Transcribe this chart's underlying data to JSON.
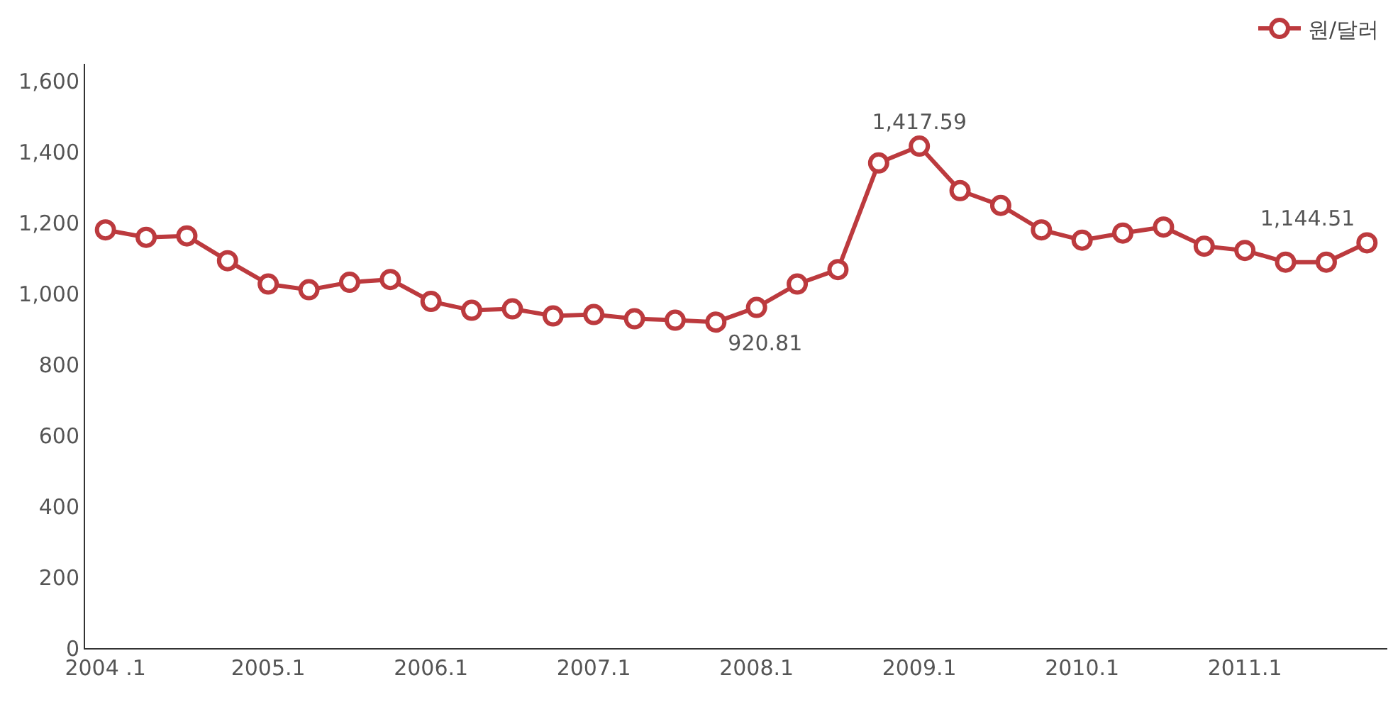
{
  "chart_data": {
    "type": "line",
    "categories": [
      "2004 .1",
      null,
      null,
      null,
      "2005.1",
      null,
      null,
      null,
      "2006.1",
      null,
      null,
      null,
      "2007.1",
      null,
      null,
      null,
      "2008.1",
      null,
      null,
      null,
      "2009.1",
      null,
      null,
      null,
      "2010.1",
      null,
      null,
      null,
      "2011.1",
      null,
      null,
      null
    ],
    "series": [
      {
        "name": "원/달러",
        "color": "#bc3a3e",
        "values": [
          1181,
          1160,
          1164,
          1094,
          1028,
          1012,
          1033,
          1041,
          979,
          954,
          958,
          938,
          942,
          930,
          926,
          920.81,
          962,
          1028,
          1069,
          1370,
          1417.59,
          1292,
          1250,
          1181,
          1152,
          1172,
          1189,
          1135,
          1123,
          1090,
          1090,
          1144.51
        ],
        "value_labels": [
          null,
          null,
          null,
          null,
          null,
          null,
          null,
          null,
          null,
          null,
          null,
          null,
          null,
          null,
          null,
          "920.81",
          null,
          null,
          null,
          null,
          "1,417.59",
          null,
          null,
          null,
          null,
          null,
          null,
          null,
          null,
          null,
          null,
          "1,144.51"
        ]
      }
    ],
    "ylim": [
      0,
      1650
    ],
    "yticks": [
      0,
      200,
      400,
      600,
      800,
      {
        "value": 1000,
        "label": "1,000"
      },
      {
        "value": 1200,
        "label": "1,200"
      },
      {
        "value": 1400,
        "label": "1,400"
      },
      {
        "value": 1600,
        "label": "1,600"
      }
    ],
    "grid": false,
    "legend": "top right",
    "marker": "circle",
    "line_style": "solid"
  }
}
